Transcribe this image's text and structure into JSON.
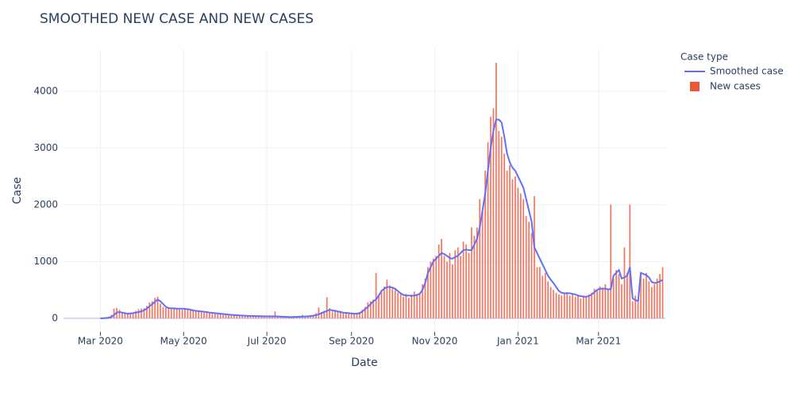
{
  "chart_data": {
    "type": "bar",
    "title": "SMOOTHED NEW CASE AND NEW CASES",
    "x_label": "Date",
    "y_label": "Case",
    "legend_title": "Case type",
    "legend_position": "top-right",
    "grid": true,
    "xlim": [
      "2020-02-03",
      "2021-04-19"
    ],
    "xticks": [
      {
        "value": "2020-03-01",
        "label": "Mar 2020"
      },
      {
        "value": "2020-05-01",
        "label": "May 2020"
      },
      {
        "value": "2020-07-01",
        "label": "Jul 2020"
      },
      {
        "value": "2020-09-01",
        "label": "Sep 2020"
      },
      {
        "value": "2020-11-01",
        "label": "Nov 2020"
      },
      {
        "value": "2021-01-01",
        "label": "Jan 2021"
      },
      {
        "value": "2021-03-01",
        "label": "Mar 2021"
      }
    ],
    "ylim": [
      -240,
      4740
    ],
    "yticks": [
      0,
      1000,
      2000,
      3000,
      4000
    ],
    "x": [
      "2020-03-01",
      "2020-03-03",
      "2020-03-05",
      "2020-03-07",
      "2020-03-09",
      "2020-03-11",
      "2020-03-13",
      "2020-03-15",
      "2020-03-17",
      "2020-03-19",
      "2020-03-21",
      "2020-03-23",
      "2020-03-25",
      "2020-03-27",
      "2020-03-29",
      "2020-03-31",
      "2020-04-02",
      "2020-04-04",
      "2020-04-06",
      "2020-04-08",
      "2020-04-10",
      "2020-04-12",
      "2020-04-14",
      "2020-04-16",
      "2020-04-18",
      "2020-04-20",
      "2020-04-22",
      "2020-04-24",
      "2020-04-26",
      "2020-04-28",
      "2020-04-30",
      "2020-05-02",
      "2020-05-04",
      "2020-05-06",
      "2020-05-08",
      "2020-05-10",
      "2020-05-12",
      "2020-05-14",
      "2020-05-16",
      "2020-05-18",
      "2020-05-20",
      "2020-05-22",
      "2020-05-24",
      "2020-05-26",
      "2020-05-28",
      "2020-05-30",
      "2020-06-01",
      "2020-06-03",
      "2020-06-05",
      "2020-06-07",
      "2020-06-09",
      "2020-06-11",
      "2020-06-13",
      "2020-06-15",
      "2020-06-17",
      "2020-06-19",
      "2020-06-21",
      "2020-06-23",
      "2020-06-25",
      "2020-06-27",
      "2020-06-29",
      "2020-07-01",
      "2020-07-03",
      "2020-07-05",
      "2020-07-07",
      "2020-07-09",
      "2020-07-11",
      "2020-07-13",
      "2020-07-15",
      "2020-07-17",
      "2020-07-19",
      "2020-07-21",
      "2020-07-23",
      "2020-07-25",
      "2020-07-27",
      "2020-07-29",
      "2020-07-31",
      "2020-08-02",
      "2020-08-04",
      "2020-08-06",
      "2020-08-08",
      "2020-08-10",
      "2020-08-12",
      "2020-08-14",
      "2020-08-16",
      "2020-08-18",
      "2020-08-20",
      "2020-08-22",
      "2020-08-24",
      "2020-08-26",
      "2020-08-28",
      "2020-08-30",
      "2020-09-01",
      "2020-09-03",
      "2020-09-05",
      "2020-09-07",
      "2020-09-09",
      "2020-09-11",
      "2020-09-13",
      "2020-09-15",
      "2020-09-17",
      "2020-09-19",
      "2020-09-21",
      "2020-09-23",
      "2020-09-25",
      "2020-09-27",
      "2020-09-29",
      "2020-10-01",
      "2020-10-03",
      "2020-10-05",
      "2020-10-07",
      "2020-10-09",
      "2020-10-11",
      "2020-10-13",
      "2020-10-15",
      "2020-10-17",
      "2020-10-19",
      "2020-10-21",
      "2020-10-23",
      "2020-10-25",
      "2020-10-27",
      "2020-10-29",
      "2020-10-31",
      "2020-11-02",
      "2020-11-04",
      "2020-11-06",
      "2020-11-08",
      "2020-11-10",
      "2020-11-12",
      "2020-11-14",
      "2020-11-16",
      "2020-11-18",
      "2020-11-20",
      "2020-11-22",
      "2020-11-24",
      "2020-11-26",
      "2020-11-28",
      "2020-11-30",
      "2020-12-02",
      "2020-12-04",
      "2020-12-06",
      "2020-12-08",
      "2020-12-10",
      "2020-12-12",
      "2020-12-14",
      "2020-12-16",
      "2020-12-18",
      "2020-12-20",
      "2020-12-22",
      "2020-12-24",
      "2020-12-26",
      "2020-12-28",
      "2020-12-30",
      "2021-01-01",
      "2021-01-03",
      "2021-01-05",
      "2021-01-07",
      "2021-01-09",
      "2021-01-11",
      "2021-01-13",
      "2021-01-15",
      "2021-01-17",
      "2021-01-19",
      "2021-01-21",
      "2021-01-23",
      "2021-01-25",
      "2021-01-27",
      "2021-01-29",
      "2021-01-31",
      "2021-02-02",
      "2021-02-04",
      "2021-02-06",
      "2021-02-08",
      "2021-02-10",
      "2021-02-12",
      "2021-02-14",
      "2021-02-16",
      "2021-02-18",
      "2021-02-20",
      "2021-02-22",
      "2021-02-24",
      "2021-02-26",
      "2021-02-28",
      "2021-03-02",
      "2021-03-04",
      "2021-03-06",
      "2021-03-08",
      "2021-03-10",
      "2021-03-12",
      "2021-03-14",
      "2021-03-16",
      "2021-03-18",
      "2021-03-20",
      "2021-03-22",
      "2021-03-24",
      "2021-03-26",
      "2021-03-28",
      "2021-03-30",
      "2021-04-01",
      "2021-04-03",
      "2021-04-05",
      "2021-04-07",
      "2021-04-09",
      "2021-04-11",
      "2021-04-13",
      "2021-04-15",
      "2021-04-17"
    ],
    "series": [
      {
        "name": "Smoothed case",
        "type": "line",
        "color": "#636efa",
        "values": [
          0,
          0,
          5,
          10,
          20,
          60,
          100,
          110,
          100,
          90,
          80,
          85,
          90,
          100,
          110,
          120,
          140,
          170,
          210,
          250,
          290,
          330,
          300,
          250,
          200,
          180,
          175,
          175,
          170,
          170,
          170,
          165,
          160,
          150,
          140,
          130,
          125,
          120,
          115,
          110,
          100,
          95,
          90,
          85,
          80,
          75,
          70,
          65,
          60,
          58,
          55,
          50,
          48,
          45,
          42,
          40,
          40,
          38,
          38,
          36,
          35,
          35,
          35,
          34,
          33,
          32,
          30,
          28,
          25,
          22,
          20,
          22,
          25,
          28,
          30,
          32,
          35,
          40,
          45,
          55,
          70,
          90,
          110,
          130,
          150,
          140,
          130,
          120,
          110,
          100,
          95,
          90,
          85,
          80,
          80,
          90,
          120,
          160,
          200,
          250,
          300,
          330,
          400,
          480,
          520,
          550,
          550,
          540,
          520,
          480,
          440,
          410,
          400,
          400,
          395,
          400,
          410,
          430,
          500,
          620,
          800,
          900,
          1000,
          1050,
          1100,
          1150,
          1130,
          1100,
          1060,
          1050,
          1080,
          1100,
          1150,
          1200,
          1210,
          1200,
          1200,
          1300,
          1400,
          1600,
          1900,
          2200,
          2600,
          3000,
          3300,
          3500,
          3500,
          3450,
          3200,
          2900,
          2750,
          2650,
          2600,
          2500,
          2400,
          2300,
          2100,
          1900,
          1700,
          1250,
          1150,
          1050,
          950,
          850,
          750,
          680,
          620,
          550,
          480,
          450,
          440,
          440,
          440,
          430,
          420,
          400,
          390,
          380,
          380,
          390,
          420,
          460,
          500,
          520,
          520,
          520,
          510,
          510,
          750,
          800,
          850,
          700,
          720,
          750,
          900,
          350,
          320,
          300,
          800,
          780,
          760,
          720,
          640,
          620,
          630,
          650,
          680
        ]
      },
      {
        "name": "New cases",
        "type": "bar",
        "color": "#ef553b",
        "values": [
          5,
          10,
          20,
          30,
          60,
          170,
          180,
          150,
          90,
          80,
          70,
          90,
          100,
          130,
          160,
          170,
          180,
          220,
          280,
          300,
          360,
          380,
          260,
          200,
          180,
          170,
          160,
          190,
          160,
          170,
          150,
          180,
          150,
          140,
          130,
          120,
          140,
          110,
          100,
          120,
          90,
          80,
          100,
          70,
          75,
          60,
          70,
          60,
          55,
          60,
          50,
          45,
          40,
          50,
          35,
          40,
          45,
          30,
          35,
          40,
          30,
          40,
          30,
          35,
          120,
          30,
          25,
          20,
          20,
          20,
          25,
          40,
          20,
          30,
          60,
          35,
          40,
          50,
          60,
          90,
          190,
          110,
          130,
          370,
          180,
          120,
          150,
          110,
          130,
          100,
          90,
          100,
          90,
          80,
          100,
          110,
          150,
          200,
          280,
          300,
          330,
          800,
          420,
          500,
          560,
          680,
          580,
          520,
          500,
          450,
          420,
          380,
          430,
          360,
          420,
          470,
          430,
          450,
          600,
          700,
          900,
          1000,
          1050,
          1100,
          1300,
          1400,
          1100,
          1000,
          1150,
          950,
          1200,
          1250,
          1100,
          1350,
          1300,
          1150,
          1600,
          1450,
          1600,
          2100,
          1900,
          2600,
          3100,
          3550,
          3700,
          4500,
          3300,
          3200,
          2900,
          2600,
          2700,
          2450,
          2500,
          2300,
          2200,
          2100,
          1800,
          1700,
          1500,
          2150,
          900,
          900,
          750,
          800,
          650,
          550,
          500,
          450,
          420,
          400,
          450,
          460,
          400,
          420,
          380,
          410,
          350,
          400,
          380,
          420,
          450,
          520,
          480,
          560,
          540,
          600,
          520,
          2000,
          700,
          850,
          780,
          600,
          1250,
          800,
          2000,
          300,
          400,
          280,
          750,
          700,
          800,
          650,
          550,
          600,
          700,
          780,
          900
        ]
      }
    ]
  }
}
